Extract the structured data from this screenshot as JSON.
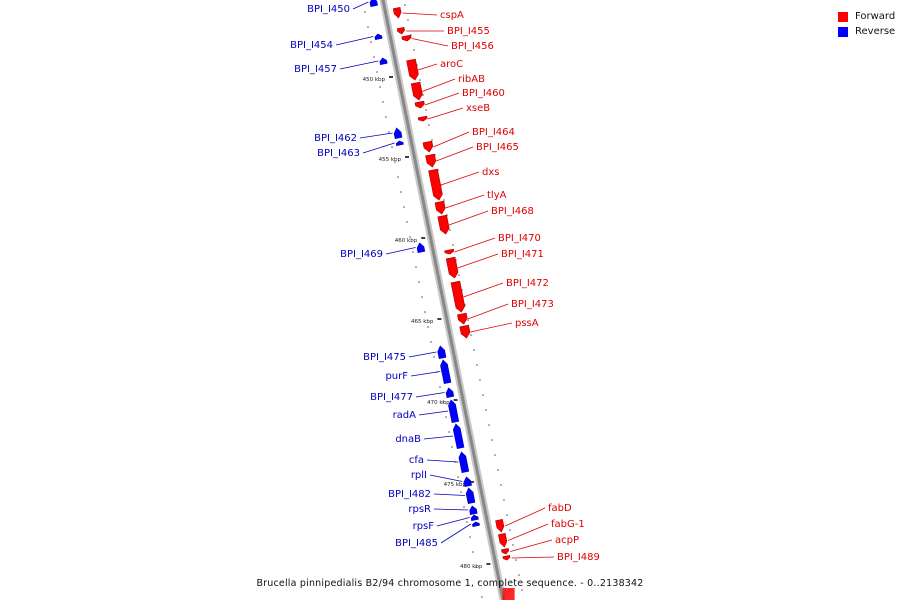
{
  "colors": {
    "forward": "#ff0000",
    "reverse": "#0000ff",
    "axis": "#888888",
    "text_forward": "#dd0000",
    "text_reverse": "#0000bb"
  },
  "legend": {
    "forward_label": "Forward",
    "reverse_label": "Reverse"
  },
  "caption": "Brucella pinnipedialis B2/94 chromosome 1, complete sequence. - 0..2138342",
  "scale_labels": [
    "450 kbp",
    "455 kbp",
    "460 kbp",
    "465 kbp",
    "470 kbp",
    "475 kbp",
    "480 kbp"
  ],
  "genes": [
    {
      "label": "BPI_I450",
      "strand": "reverse"
    },
    {
      "label": "cspA",
      "strand": "forward"
    },
    {
      "label": "BPI_I455",
      "strand": "forward"
    },
    {
      "label": "BPI_I456",
      "strand": "forward"
    },
    {
      "label": "BPI_I454",
      "strand": "reverse"
    },
    {
      "label": "BPI_I457",
      "strand": "reverse"
    },
    {
      "label": "aroC",
      "strand": "forward"
    },
    {
      "label": "ribAB",
      "strand": "forward"
    },
    {
      "label": "BPI_I460",
      "strand": "forward"
    },
    {
      "label": "xseB",
      "strand": "forward"
    },
    {
      "label": "BPI_I462",
      "strand": "reverse"
    },
    {
      "label": "BPI_I463",
      "strand": "reverse"
    },
    {
      "label": "BPI_I464",
      "strand": "forward"
    },
    {
      "label": "BPI_I465",
      "strand": "forward"
    },
    {
      "label": "dxs",
      "strand": "forward"
    },
    {
      "label": "tlyA",
      "strand": "forward"
    },
    {
      "label": "BPI_I468",
      "strand": "forward"
    },
    {
      "label": "BPI_I469",
      "strand": "reverse"
    },
    {
      "label": "BPI_I470",
      "strand": "forward"
    },
    {
      "label": "BPI_I471",
      "strand": "forward"
    },
    {
      "label": "BPI_I472",
      "strand": "forward"
    },
    {
      "label": "BPI_I473",
      "strand": "forward"
    },
    {
      "label": "pssA",
      "strand": "forward"
    },
    {
      "label": "BPI_I475",
      "strand": "reverse"
    },
    {
      "label": "purF",
      "strand": "reverse"
    },
    {
      "label": "BPI_I477",
      "strand": "reverse"
    },
    {
      "label": "radA",
      "strand": "reverse"
    },
    {
      "label": "dnaB",
      "strand": "reverse"
    },
    {
      "label": "cfa",
      "strand": "reverse"
    },
    {
      "label": "rplI",
      "strand": "reverse"
    },
    {
      "label": "BPI_I482",
      "strand": "reverse"
    },
    {
      "label": "rpsR",
      "strand": "reverse"
    },
    {
      "label": "rpsF",
      "strand": "reverse"
    },
    {
      "label": "BPI_I485",
      "strand": "reverse"
    },
    {
      "label": "fabD",
      "strand": "forward"
    },
    {
      "label": "fabG-1",
      "strand": "forward"
    },
    {
      "label": "acpP",
      "strand": "forward"
    },
    {
      "label": "BPI_I489",
      "strand": "forward"
    }
  ]
}
